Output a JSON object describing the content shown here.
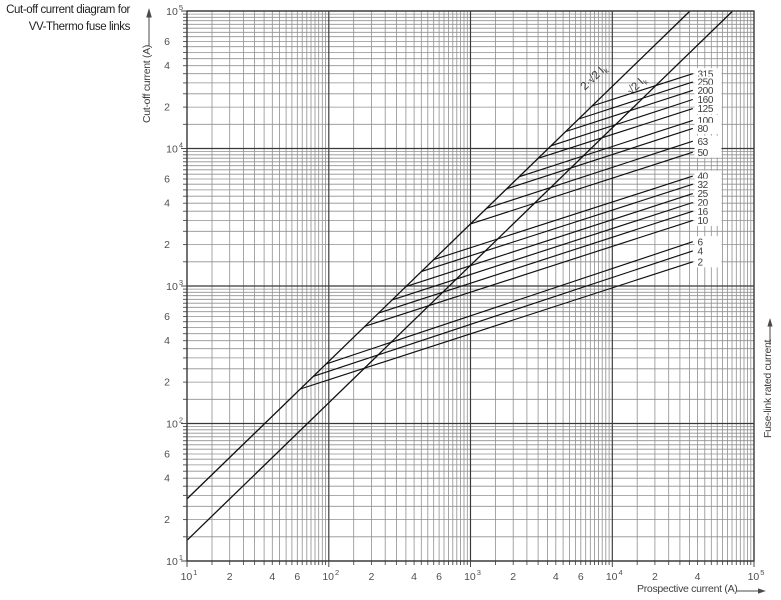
{
  "title": {
    "line1": "Cut-off current diagram for",
    "line2": "VV-Thermo fuse links"
  },
  "chart_data": {
    "type": "line",
    "title": "Cut-off current diagram for VV-Thermo fuse links",
    "units": "A",
    "x_axis": {
      "label": "Prospective current (A)",
      "scale": "log",
      "range": [
        10,
        100000
      ],
      "decade_exponents": [
        1,
        2,
        3,
        4,
        5
      ],
      "labeled_minors_per_decade": [
        [
          2,
          4,
          6
        ],
        [
          2,
          4,
          6
        ],
        [
          2,
          4,
          6
        ],
        [
          2,
          4
        ]
      ]
    },
    "y_axis": {
      "label": "Cut-off current (A)",
      "scale": "log",
      "range": [
        10,
        100000
      ],
      "decade_exponents": [
        1,
        2,
        3,
        4,
        5
      ],
      "labeled_minors_per_decade": [
        [
          2,
          4,
          6
        ],
        [
          2,
          4,
          6
        ],
        [
          2,
          4,
          6
        ],
        [
          2,
          4,
          6
        ]
      ]
    },
    "right_axis_label": "Fuse-link rated current",
    "grid": {
      "on": true,
      "minor_positions": [
        1.5,
        2,
        2.5,
        3,
        3.5,
        4,
        4.5,
        5,
        5.5,
        6,
        6.5,
        7,
        7.5,
        8,
        8.5,
        9,
        9.5
      ]
    },
    "reference_lines": [
      {
        "label": "2·√2 I",
        "label_sub": "k",
        "factor": 2.828
      },
      {
        "label": "√2 I",
        "label_sub": "k",
        "factor": 1.414
      }
    ],
    "curve_end_prospective": 37000,
    "series": [
      {
        "rating": "315",
        "branch_prospective": 7200,
        "cutoff_at_end": 35000
      },
      {
        "rating": "250",
        "branch_prospective": 5800,
        "cutoff_at_end": 30500
      },
      {
        "rating": "200",
        "branch_prospective": 4700,
        "cutoff_at_end": 26500
      },
      {
        "rating": "160",
        "branch_prospective": 3700,
        "cutoff_at_end": 22700
      },
      {
        "rating": "125",
        "branch_prospective": 3000,
        "cutoff_at_end": 19500
      },
      {
        "rating": "100",
        "branch_prospective": 2200,
        "cutoff_at_end": 16000
      },
      {
        "rating": "80",
        "branch_prospective": 1800,
        "cutoff_at_end": 14000
      },
      {
        "rating": "63",
        "branch_prospective": 1300,
        "cutoff_at_end": 11300
      },
      {
        "rating": "50",
        "branch_prospective": 1000,
        "cutoff_at_end": 9400
      },
      {
        "rating": "40",
        "branch_prospective": 550,
        "cutoff_at_end": 6300
      },
      {
        "rating": "32",
        "branch_prospective": 450,
        "cutoff_at_end": 5500
      },
      {
        "rating": "25",
        "branch_prospective": 350,
        "cutoff_at_end": 4700
      },
      {
        "rating": "20",
        "branch_prospective": 280,
        "cutoff_at_end": 4050
      },
      {
        "rating": "16",
        "branch_prospective": 225,
        "cutoff_at_end": 3500
      },
      {
        "rating": "10",
        "branch_prospective": 180,
        "cutoff_at_end": 3000
      },
      {
        "rating": "6",
        "branch_prospective": 96,
        "cutoff_at_end": 2100
      },
      {
        "rating": "4",
        "branch_prospective": 78,
        "cutoff_at_end": 1800
      },
      {
        "rating": "2",
        "branch_prospective": 63,
        "cutoff_at_end": 1500
      }
    ],
    "colors": {
      "curve": "#101010",
      "grid_minor": "#909090",
      "grid_major": "#383838",
      "axis": "#4a4a4a",
      "tick_text": "#4f4f4f",
      "label_text": "#3c3c3c"
    }
  }
}
